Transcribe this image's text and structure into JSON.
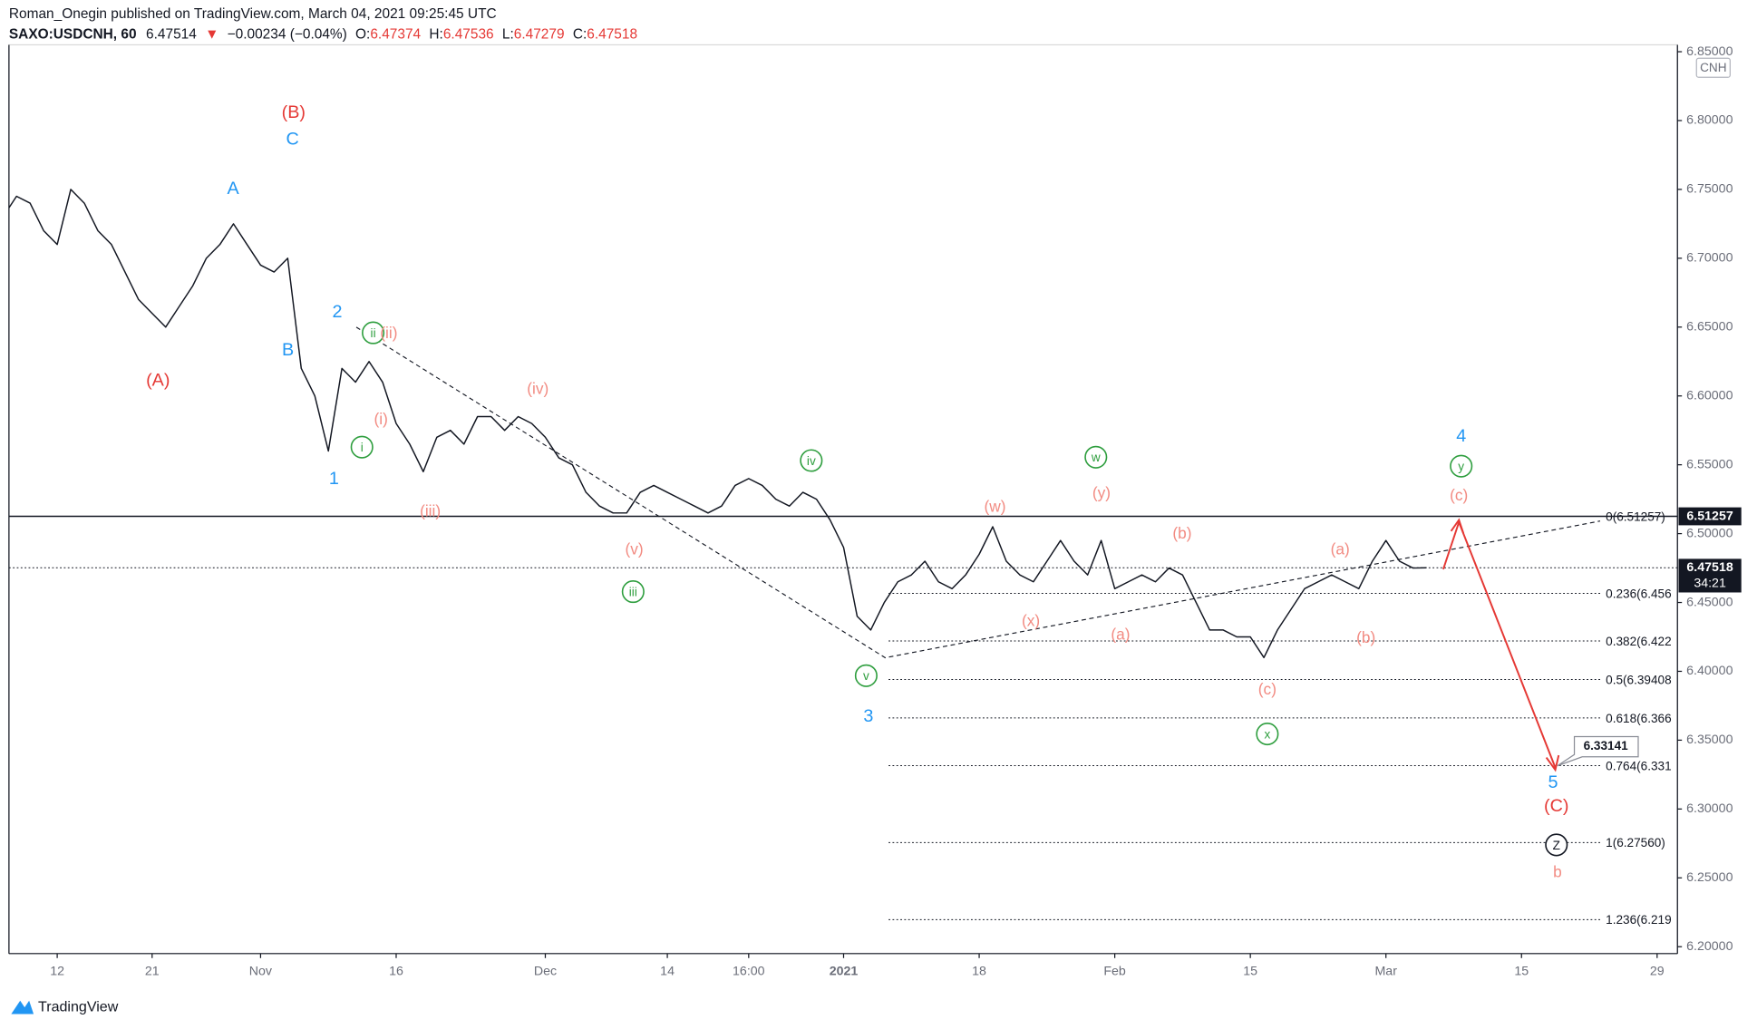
{
  "header": {
    "published": "Roman_Onegin published on TradingView.com, March 04, 2021 09:25:45 UTC",
    "symbol": "SAXO:USDCNH, 60",
    "last": "6.47514",
    "arrow": "▼",
    "change": "−0.00234 (−0.04%)",
    "o_label": "O:",
    "open": "6.47374",
    "h_label": "H:",
    "high": "6.47536",
    "l_label": "L:",
    "low": "6.47279",
    "c_label": "C:",
    "close": "6.47518"
  },
  "footer": "TradingView",
  "chart_data": {
    "type": "line",
    "color": "#131722",
    "currency": "CNH",
    "categories": [
      null,
      null,
      null,
      null,
      "12",
      null,
      null,
      null,
      null,
      null,
      null,
      "21",
      null,
      null,
      null,
      null,
      null,
      null,
      null,
      "Nov",
      null,
      null,
      null,
      null,
      null,
      null,
      null,
      null,
      null,
      "16",
      null,
      null,
      null,
      null,
      null,
      null,
      null,
      null,
      null,
      null,
      "Dec",
      null,
      null,
      null,
      null,
      null,
      null,
      null,
      null,
      "14",
      null,
      null,
      null,
      null,
      null,
      "16:00",
      null,
      null,
      null,
      null,
      null,
      null,
      "2021",
      null,
      null,
      null,
      null,
      null,
      null,
      null,
      null,
      null,
      "18",
      null,
      null,
      null,
      null,
      null,
      null,
      null,
      null,
      null,
      "Feb",
      null,
      null,
      null,
      null,
      null,
      null,
      null,
      null,
      null,
      "15",
      null,
      null,
      null,
      null,
      null,
      null,
      null,
      null,
      null,
      "Mar",
      null,
      null,
      null,
      null,
      null,
      null,
      null,
      null,
      null,
      "15",
      null,
      null,
      null,
      null,
      null,
      null,
      null,
      null,
      null,
      "29",
      null
    ],
    "values": [
      6.73,
      6.745,
      6.74,
      6.72,
      6.71,
      6.75,
      6.74,
      6.72,
      6.71,
      6.69,
      6.67,
      6.66,
      6.65,
      6.665,
      6.68,
      6.7,
      6.71,
      6.725,
      6.71,
      6.695,
      6.69,
      6.7,
      6.62,
      6.6,
      6.56,
      6.62,
      6.61,
      6.625,
      6.61,
      6.58,
      6.565,
      6.545,
      6.57,
      6.575,
      6.565,
      6.585,
      6.585,
      6.575,
      6.585,
      6.58,
      6.57,
      6.555,
      6.55,
      6.53,
      6.52,
      6.515,
      6.515,
      6.53,
      6.535,
      6.53,
      6.525,
      6.52,
      6.515,
      6.52,
      6.535,
      6.54,
      6.535,
      6.525,
      6.52,
      6.53,
      6.525,
      6.51,
      6.49,
      6.44,
      6.43,
      6.45,
      6.465,
      6.47,
      6.48,
      6.465,
      6.46,
      6.47,
      6.485,
      6.505,
      6.48,
      6.47,
      6.465,
      6.48,
      6.495,
      6.48,
      6.47,
      6.495,
      6.46,
      6.465,
      6.47,
      6.465,
      6.475,
      6.47,
      6.45,
      6.43,
      6.43,
      6.425,
      6.425,
      6.41,
      6.43,
      6.445,
      6.46,
      6.465,
      6.47,
      6.465,
      6.46,
      6.48,
      6.495,
      6.48,
      6.475,
      6.47518,
      null,
      null,
      null,
      null,
      null,
      null,
      null,
      null,
      null,
      null,
      null,
      null,
      null,
      null,
      null,
      null,
      null,
      null
    ],
    "ylim": [
      6.195,
      6.855
    ],
    "yticks": [
      {
        "value": 6.2,
        "label": "6.20000"
      },
      {
        "value": 6.25,
        "label": "6.25000"
      },
      {
        "value": 6.3,
        "label": "6.30000"
      },
      {
        "value": 6.35,
        "label": "6.35000"
      },
      {
        "value": 6.4,
        "label": "6.40000"
      },
      {
        "value": 6.45,
        "label": "6.45000"
      },
      {
        "value": 6.5,
        "label": "6.50000"
      },
      {
        "value": 6.55,
        "label": "6.55000"
      },
      {
        "value": 6.6,
        "label": "6.60000"
      },
      {
        "value": 6.65,
        "label": "6.65000"
      },
      {
        "value": 6.7,
        "label": "6.70000"
      },
      {
        "value": 6.75,
        "label": "6.75000"
      },
      {
        "value": 6.8,
        "label": "6.80000"
      },
      {
        "value": 6.85,
        "label": "6.85000"
      }
    ],
    "price_lines": [
      {
        "value": 6.51257,
        "label": "6.51257",
        "style": "solid"
      },
      {
        "value": 6.47518,
        "label": "6.47518",
        "style": "dotted",
        "countdown": "34:21"
      }
    ],
    "fib_levels": [
      {
        "value": 6.51257,
        "label": "0(6.51257)"
      },
      {
        "value": 6.45664,
        "label": "0.236(6.456"
      },
      {
        "value": 6.42205,
        "label": "0.382(6.422"
      },
      {
        "value": 6.39408,
        "label": "0.5(6.39408"
      },
      {
        "value": 6.36612,
        "label": "0.618(6.366"
      },
      {
        "value": 6.33153,
        "label": "0.764(6.331"
      },
      {
        "value": 6.2756,
        "label": "1(6.27560)"
      },
      {
        "value": 6.21968,
        "label": "1.236(6.219"
      }
    ],
    "target": {
      "value": 6.33141,
      "label": "6.33141"
    },
    "annotations": [
      {
        "text": "(B)",
        "color": "#e53935"
      },
      {
        "text": "C",
        "color": "#2196f3"
      },
      {
        "text": "A",
        "color": "#2196f3"
      },
      {
        "text": "(A)",
        "color": "#e53935"
      },
      {
        "text": "B",
        "color": "#2196f3"
      },
      {
        "text": "2",
        "color": "#2196f3"
      },
      {
        "text": "1",
        "color": "#2196f3"
      },
      {
        "text": "ii",
        "color": "#2e9e3e",
        "circled": true
      },
      {
        "text": "(ii)",
        "color": "#f28b82"
      },
      {
        "text": "i",
        "color": "#2e9e3e",
        "circled": true
      },
      {
        "text": "(i)",
        "color": "#f28b82"
      },
      {
        "text": "(iii)",
        "color": "#f28b82"
      },
      {
        "text": "(iv)",
        "color": "#f28b82"
      },
      {
        "text": "(v)",
        "color": "#f28b82"
      },
      {
        "text": "iii",
        "color": "#2e9e3e",
        "circled": true
      },
      {
        "text": "iv",
        "color": "#2e9e3e",
        "circled": true
      },
      {
        "text": "v",
        "color": "#2e9e3e",
        "circled": true
      },
      {
        "text": "3",
        "color": "#2196f3"
      },
      {
        "text": "(w)",
        "color": "#f28b82"
      },
      {
        "text": "(x)",
        "color": "#f28b82"
      },
      {
        "text": "w",
        "color": "#2e9e3e",
        "circled": true
      },
      {
        "text": "(y)",
        "color": "#f28b82"
      },
      {
        "text": "(b)",
        "color": "#f28b82"
      },
      {
        "text": "(a)",
        "color": "#f28b82"
      },
      {
        "text": "(c)",
        "color": "#f28b82"
      },
      {
        "text": "x",
        "color": "#2e9e3e",
        "circled": true
      },
      {
        "text": "(a)",
        "color": "#f28b82"
      },
      {
        "text": "(b)",
        "color": "#f28b82"
      },
      {
        "text": "4",
        "color": "#2196f3"
      },
      {
        "text": "y",
        "color": "#2e9e3e",
        "circled": true
      },
      {
        "text": "(c)",
        "color": "#f28b82"
      },
      {
        "text": "5",
        "color": "#2196f3"
      },
      {
        "text": "(C)",
        "color": "#e53935"
      },
      {
        "text": "Z",
        "color": "#131722",
        "circled": true
      },
      {
        "text": "b",
        "color": "#f28b82"
      }
    ]
  }
}
